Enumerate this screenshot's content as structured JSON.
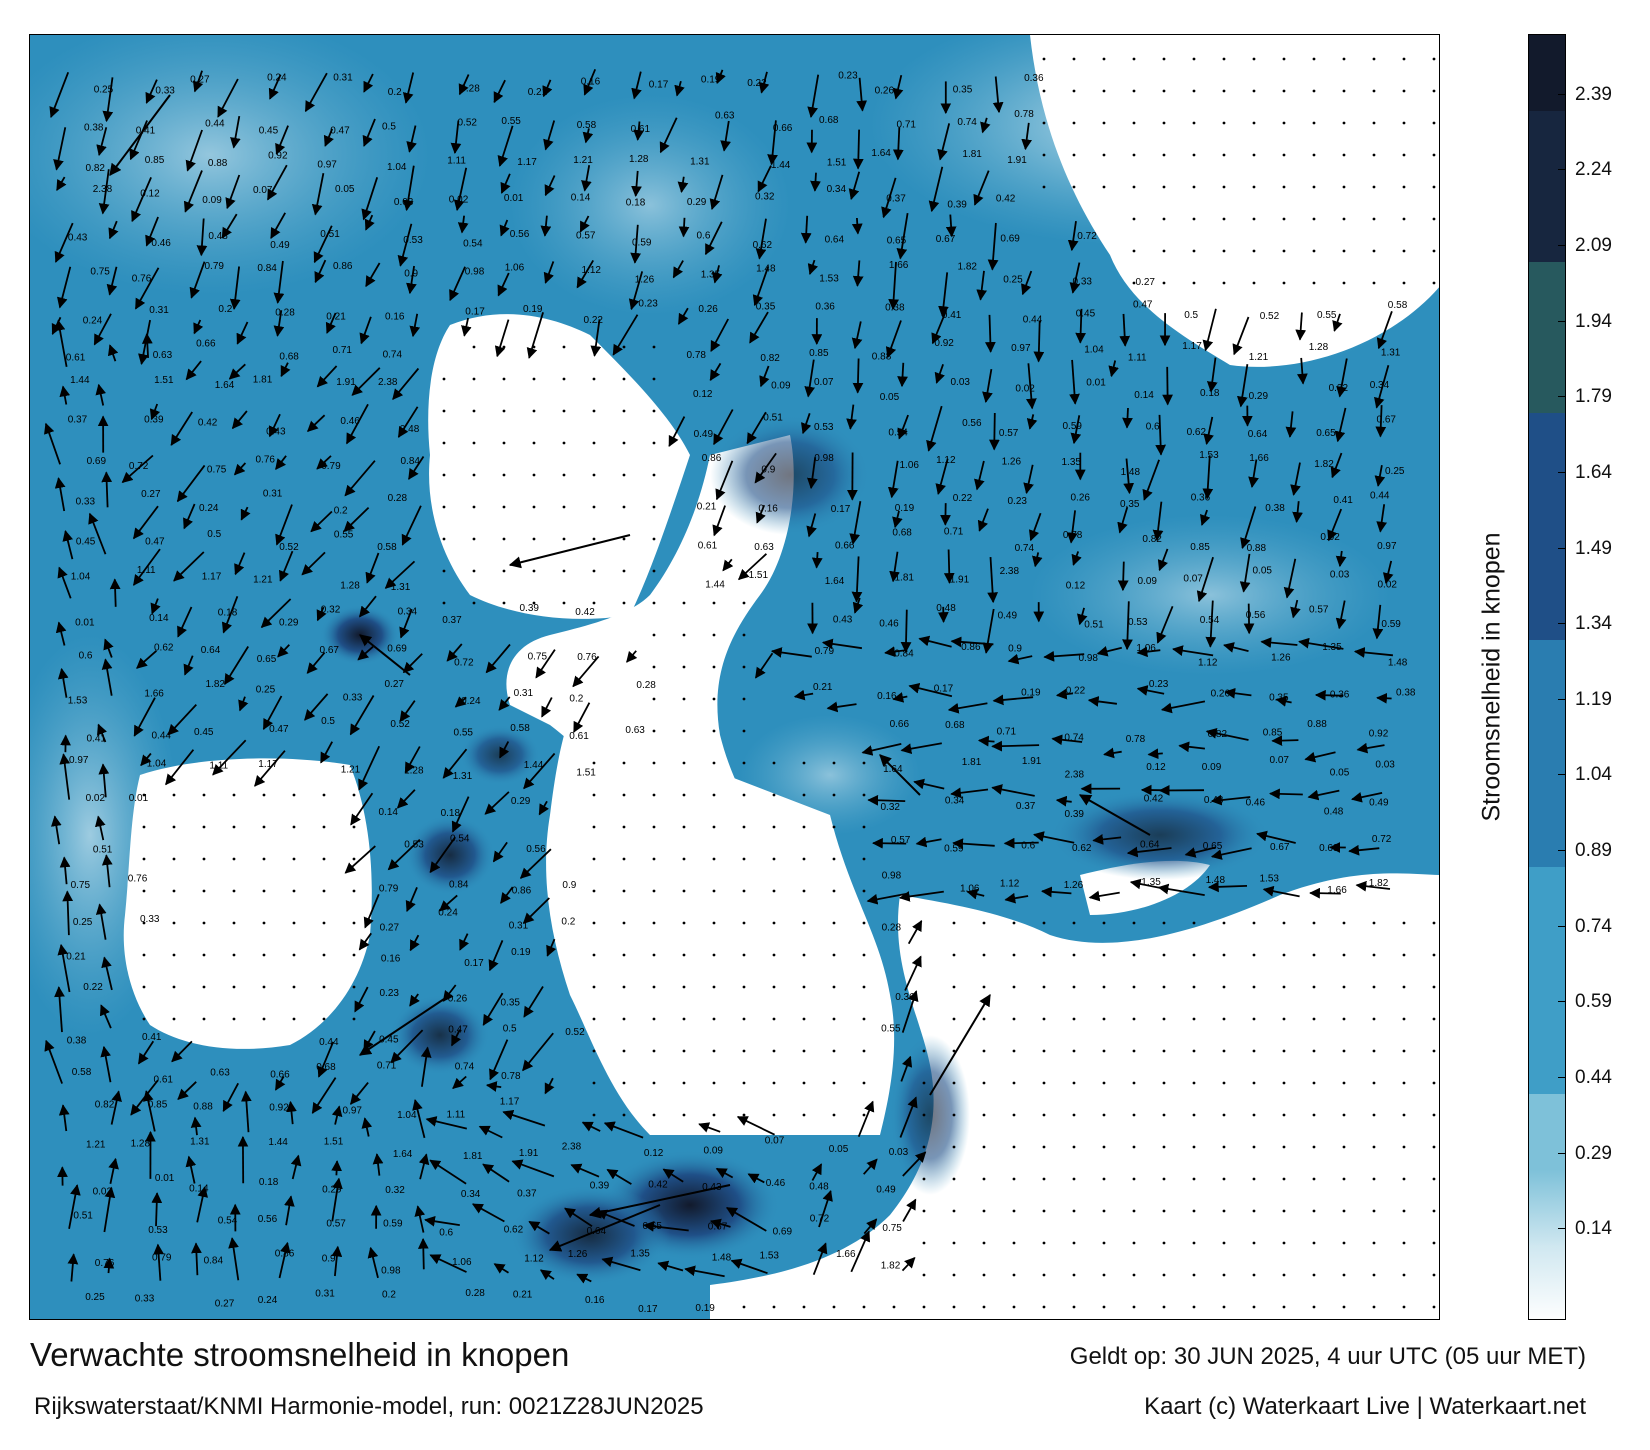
{
  "title": "Verwachte stroomsnelheid in knopen",
  "subtitle": "Rijkswaterstaat/KNMI Harmonie-model, run: 0021Z28JUN2025",
  "valid_time": "Geldt op: 30 JUN 2025, 4 uur UTC (05 uur MET)",
  "credit": "Kaart (c) Waterkaart Live | Waterkaart.net",
  "legend": {
    "label": "Stroomsnelheid in knopen",
    "ticks": [
      "2.39",
      "2.24",
      "2.09",
      "1.94",
      "1.79",
      "1.64",
      "1.49",
      "1.34",
      "1.19",
      "1.04",
      "0.89",
      "0.74",
      "0.59",
      "0.44",
      "0.29",
      "0.14"
    ],
    "colors": {
      "low": "#ffffff",
      "light": "#cfe7f0",
      "mid": "#7ec1d9",
      "water": "#3f9ec7",
      "blue": "#2a7db0",
      "deep": "#1f4f87",
      "teal": "#27595e",
      "navy": "#17263f",
      "darkest": "#121a2c"
    }
  },
  "map": {
    "sea_color": "#2e8fbd",
    "land_color": "#ffffff",
    "labels": [
      {
        "t": "0.25"
      },
      {
        "t": "0.33"
      },
      {
        "t": "0.27"
      },
      {
        "t": "0.24"
      },
      {
        "t": "0.31"
      },
      {
        "t": "0.2"
      },
      {
        "t": "0.28"
      },
      {
        "t": "0.21"
      },
      {
        "t": "0.16"
      },
      {
        "t": "0.17"
      },
      {
        "t": "0.19"
      },
      {
        "t": "0.22"
      },
      {
        "t": "0.23"
      },
      {
        "t": "0.26"
      },
      {
        "t": "0.35"
      },
      {
        "t": "0.36"
      },
      {
        "t": "0.38"
      },
      {
        "t": "0.41"
      },
      {
        "t": "0.44"
      },
      {
        "t": "0.45"
      },
      {
        "t": "0.47"
      },
      {
        "t": "0.5"
      },
      {
        "t": "0.52"
      },
      {
        "t": "0.55"
      },
      {
        "t": "0.58"
      },
      {
        "t": "0.61"
      },
      {
        "t": "0.63"
      },
      {
        "t": "0.66"
      },
      {
        "t": "0.68"
      },
      {
        "t": "0.71"
      },
      {
        "t": "0.74"
      },
      {
        "t": "0.78"
      },
      {
        "t": "0.82"
      },
      {
        "t": "0.85"
      },
      {
        "t": "0.88"
      },
      {
        "t": "0.92"
      },
      {
        "t": "0.97"
      },
      {
        "t": "1.04"
      },
      {
        "t": "1.11"
      },
      {
        "t": "1.17"
      },
      {
        "t": "1.21"
      },
      {
        "t": "1.28"
      },
      {
        "t": "1.31"
      },
      {
        "t": "1.44"
      },
      {
        "t": "1.51"
      },
      {
        "t": "1.64"
      },
      {
        "t": "1.81"
      },
      {
        "t": "1.91"
      },
      {
        "t": "2.38"
      },
      {
        "t": "0.12"
      },
      {
        "t": "0.09"
      },
      {
        "t": "0.07"
      },
      {
        "t": "0.05"
      },
      {
        "t": "0.03"
      },
      {
        "t": "0.02"
      },
      {
        "t": "0.01"
      },
      {
        "t": "0.14"
      },
      {
        "t": "0.18"
      },
      {
        "t": "0.29"
      },
      {
        "t": "0.32"
      },
      {
        "t": "0.34"
      },
      {
        "t": "0.37"
      },
      {
        "t": "0.39"
      },
      {
        "t": "0.42"
      },
      {
        "t": "0.43"
      },
      {
        "t": "0.46"
      },
      {
        "t": "0.48"
      },
      {
        "t": "0.49"
      },
      {
        "t": "0.51"
      },
      {
        "t": "0.53"
      },
      {
        "t": "0.54"
      },
      {
        "t": "0.56"
      },
      {
        "t": "0.57"
      },
      {
        "t": "0.59"
      },
      {
        "t": "0.6"
      },
      {
        "t": "0.62"
      },
      {
        "t": "0.64"
      },
      {
        "t": "0.65"
      },
      {
        "t": "0.67"
      },
      {
        "t": "0.69"
      },
      {
        "t": "0.72"
      },
      {
        "t": "0.75"
      },
      {
        "t": "0.76"
      },
      {
        "t": "0.79"
      },
      {
        "t": "0.84"
      },
      {
        "t": "0.86"
      },
      {
        "t": "0.9"
      },
      {
        "t": "0.98"
      },
      {
        "t": "1.06"
      },
      {
        "t": "1.12"
      },
      {
        "t": "1.26"
      },
      {
        "t": "1.35"
      },
      {
        "t": "1.48"
      },
      {
        "t": "1.53"
      },
      {
        "t": "1.66"
      },
      {
        "t": "1.82"
      }
    ]
  }
}
